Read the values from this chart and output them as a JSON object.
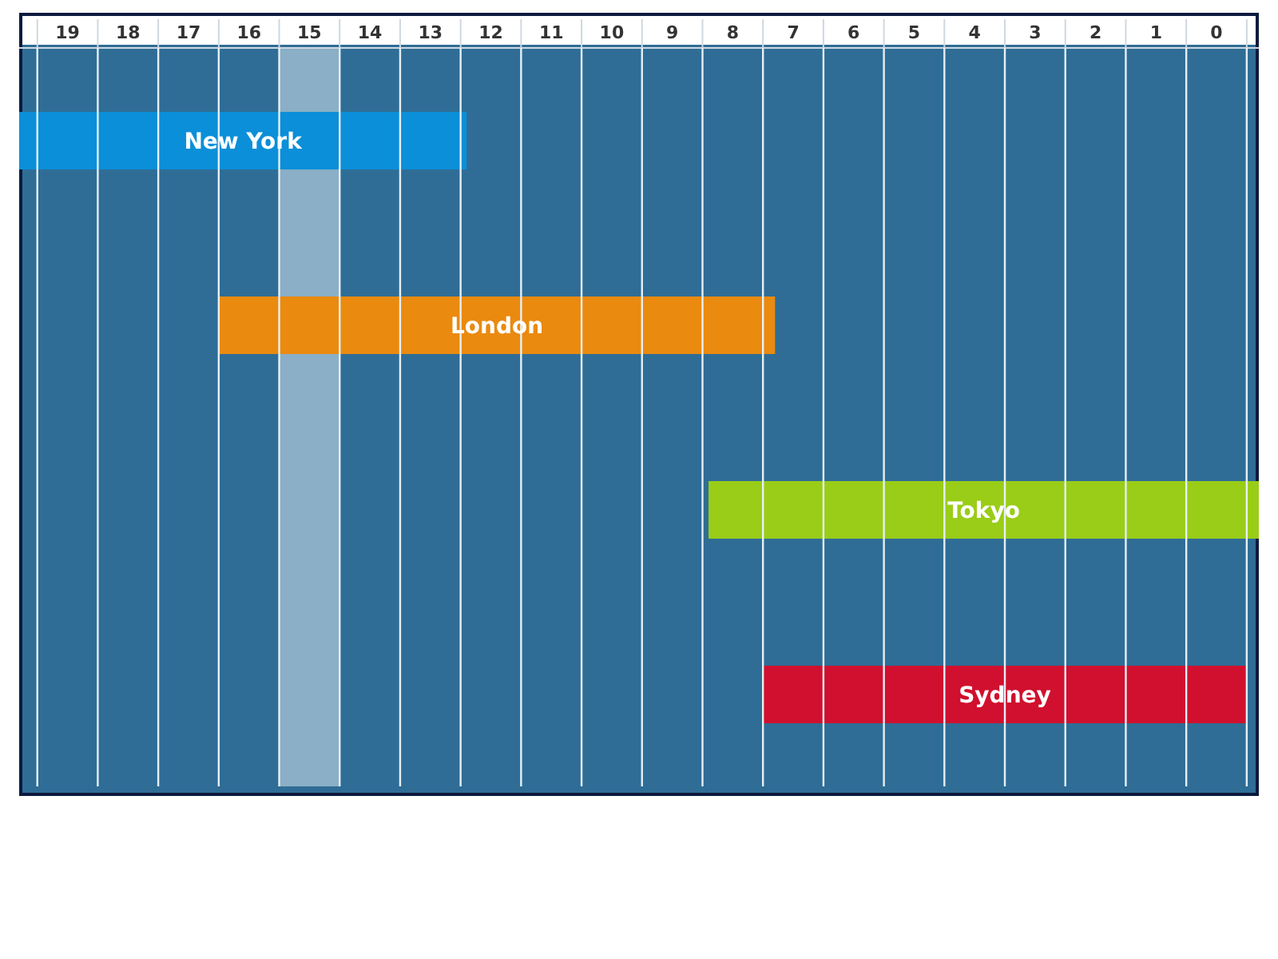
{
  "chart_data": {
    "type": "bar",
    "orientation": "horizontal",
    "categories": [
      "New York",
      "London",
      "Tokyo",
      "Sydney"
    ],
    "base": [
      12.4,
      7.3,
      -0.7,
      -0.5
    ],
    "values": [
      7.4,
      9.2,
      9.1,
      8
    ],
    "colors": [
      "#0b8fd8",
      "#ea8a0f",
      "#9acd17",
      "#d0102e"
    ],
    "xlim": [
      19.8,
      -0.7
    ],
    "xticks": [
      {
        "value": 19.5,
        "label": null
      },
      19,
      {
        "value": 18.5,
        "label": null
      },
      18,
      {
        "value": 17.5,
        "label": null
      },
      17,
      {
        "value": 16.5,
        "label": null
      },
      16,
      {
        "value": 15.5,
        "label": null
      },
      15,
      {
        "value": 14.5,
        "label": null
      },
      14,
      {
        "value": 13.5,
        "label": null
      },
      13,
      {
        "value": 12.5,
        "label": null
      },
      12,
      {
        "value": 11.5,
        "label": null
      },
      11,
      {
        "value": 10.5,
        "label": null
      },
      10,
      {
        "value": 9.5,
        "label": null
      },
      9,
      {
        "value": 8.5,
        "label": null
      },
      8,
      {
        "value": 7.5,
        "label": null
      },
      7,
      {
        "value": 6.5,
        "label": null
      },
      6,
      {
        "value": 5.5,
        "label": null
      },
      5,
      {
        "value": 4.5,
        "label": null
      },
      4,
      {
        "value": 3.5,
        "label": null
      },
      3,
      {
        "value": 2.5,
        "label": null
      },
      2,
      {
        "value": 1.5,
        "label": null
      },
      1,
      {
        "value": 0.5,
        "label": null
      },
      0,
      {
        "value": -0.5,
        "label": null
      }
    ],
    "bands": [
      {
        "axis": "x",
        "from": 14.5,
        "to": 15.5,
        "color": "#a9c6d6"
      }
    ],
    "grid": "x"
  }
}
